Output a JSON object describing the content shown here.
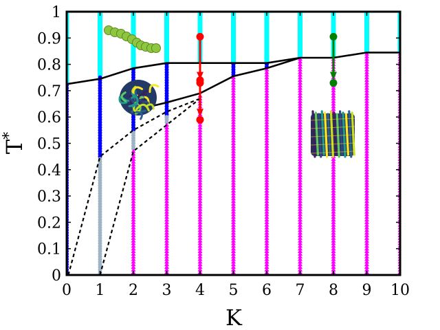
{
  "chart_data": {
    "type": "scatter",
    "title": "",
    "xlabel": "K",
    "ylabel_base": "T",
    "ylabel_sup": "*",
    "xlim": [
      0,
      10
    ],
    "ylim": [
      0,
      1
    ],
    "x_ticks": [
      0,
      1,
      2,
      3,
      4,
      5,
      6,
      7,
      8,
      9,
      10
    ],
    "y_ticks": [
      0,
      0.1,
      0.2,
      0.3,
      0.4,
      0.5,
      0.6,
      0.7,
      0.8,
      0.9,
      1
    ],
    "grid": false,
    "legend": "none",
    "colors": {
      "disordered": "#00ffff",
      "globule": "#0000ff",
      "frozen": "#a0b4c8",
      "crystal": "#ff00ff",
      "arrow_red": "#ff0000",
      "arrow_green": "#008000",
      "boundary": "#000000"
    },
    "series": [
      {
        "marker": "square",
        "color_key": "disordered",
        "ranges": [
          [
            0,
            0.73,
            1.0
          ],
          [
            1,
            0.76,
            1.0
          ],
          [
            2,
            0.79,
            1.0
          ],
          [
            3,
            0.81,
            1.0
          ],
          [
            4,
            0.81,
            1.0
          ],
          [
            5,
            0.81,
            1.0
          ],
          [
            6,
            0.81,
            1.0
          ],
          [
            7,
            0.83,
            1.0
          ],
          [
            8,
            0.83,
            1.0
          ],
          [
            9,
            0.85,
            1.0
          ],
          [
            10,
            0.85,
            1.0
          ]
        ]
      },
      {
        "marker": "circle",
        "color_key": "globule",
        "ranges": [
          [
            0,
            0.0,
            0.72
          ],
          [
            1,
            0.45,
            0.75
          ],
          [
            2,
            0.55,
            0.78
          ],
          [
            3,
            0.6,
            0.8
          ],
          [
            5,
            0.76,
            0.8
          ],
          [
            6,
            0.79,
            0.8
          ]
        ]
      },
      {
        "marker": "circle",
        "color_key": "frozen",
        "ranges": [
          [
            1,
            0.0,
            0.44
          ],
          [
            2,
            0.48,
            0.54
          ],
          [
            3,
            0.58,
            0.6
          ]
        ]
      },
      {
        "marker": "triangle",
        "color_key": "crystal",
        "ranges": [
          [
            2,
            0.0,
            0.47
          ],
          [
            3,
            0.0,
            0.57
          ],
          [
            4,
            0.0,
            0.68
          ],
          [
            5,
            0.0,
            0.75
          ],
          [
            6,
            0.0,
            0.78
          ],
          [
            7,
            0.0,
            0.82
          ],
          [
            8,
            0.0,
            0.82
          ],
          [
            9,
            0.0,
            0.84
          ],
          [
            10,
            0.0,
            0.84
          ]
        ]
      }
    ],
    "boundaries": [
      {
        "style": "solid",
        "points": [
          [
            0,
            0.725
          ],
          [
            1,
            0.745
          ],
          [
            2,
            0.785
          ],
          [
            3,
            0.805
          ],
          [
            4,
            0.805
          ],
          [
            5,
            0.805
          ],
          [
            6,
            0.805
          ],
          [
            7,
            0.825
          ],
          [
            8,
            0.825
          ],
          [
            9,
            0.845
          ],
          [
            10,
            0.845
          ]
        ]
      },
      {
        "style": "solid",
        "points": [
          [
            2,
            0.625
          ],
          [
            3,
            0.655
          ],
          [
            4,
            0.69
          ],
          [
            5,
            0.755
          ],
          [
            6,
            0.785
          ],
          [
            7,
            0.825
          ]
        ]
      },
      {
        "style": "dashed",
        "points": [
          [
            0.05,
            0.0
          ],
          [
            1,
            0.45
          ],
          [
            2,
            0.55
          ],
          [
            3,
            0.62
          ],
          [
            4,
            0.67
          ]
        ]
      },
      {
        "style": "dashed",
        "points": [
          [
            1,
            0.0
          ],
          [
            2,
            0.47
          ],
          [
            3,
            0.57
          ],
          [
            4,
            0.67
          ]
        ]
      }
    ],
    "arrows": [
      {
        "x": 4,
        "from": 0.905,
        "to": 0.74,
        "color_key": "arrow_red"
      },
      {
        "x": 4,
        "from": 0.74,
        "to": 0.6,
        "color_key": "arrow_red"
      },
      {
        "x": 8,
        "from": 0.905,
        "to": 0.74,
        "color_key": "arrow_green"
      }
    ]
  },
  "insets": [
    {
      "name": "extended-chain-inset"
    },
    {
      "name": "collapsed-globule-inset"
    },
    {
      "name": "crystalline-bundle-inset"
    }
  ]
}
